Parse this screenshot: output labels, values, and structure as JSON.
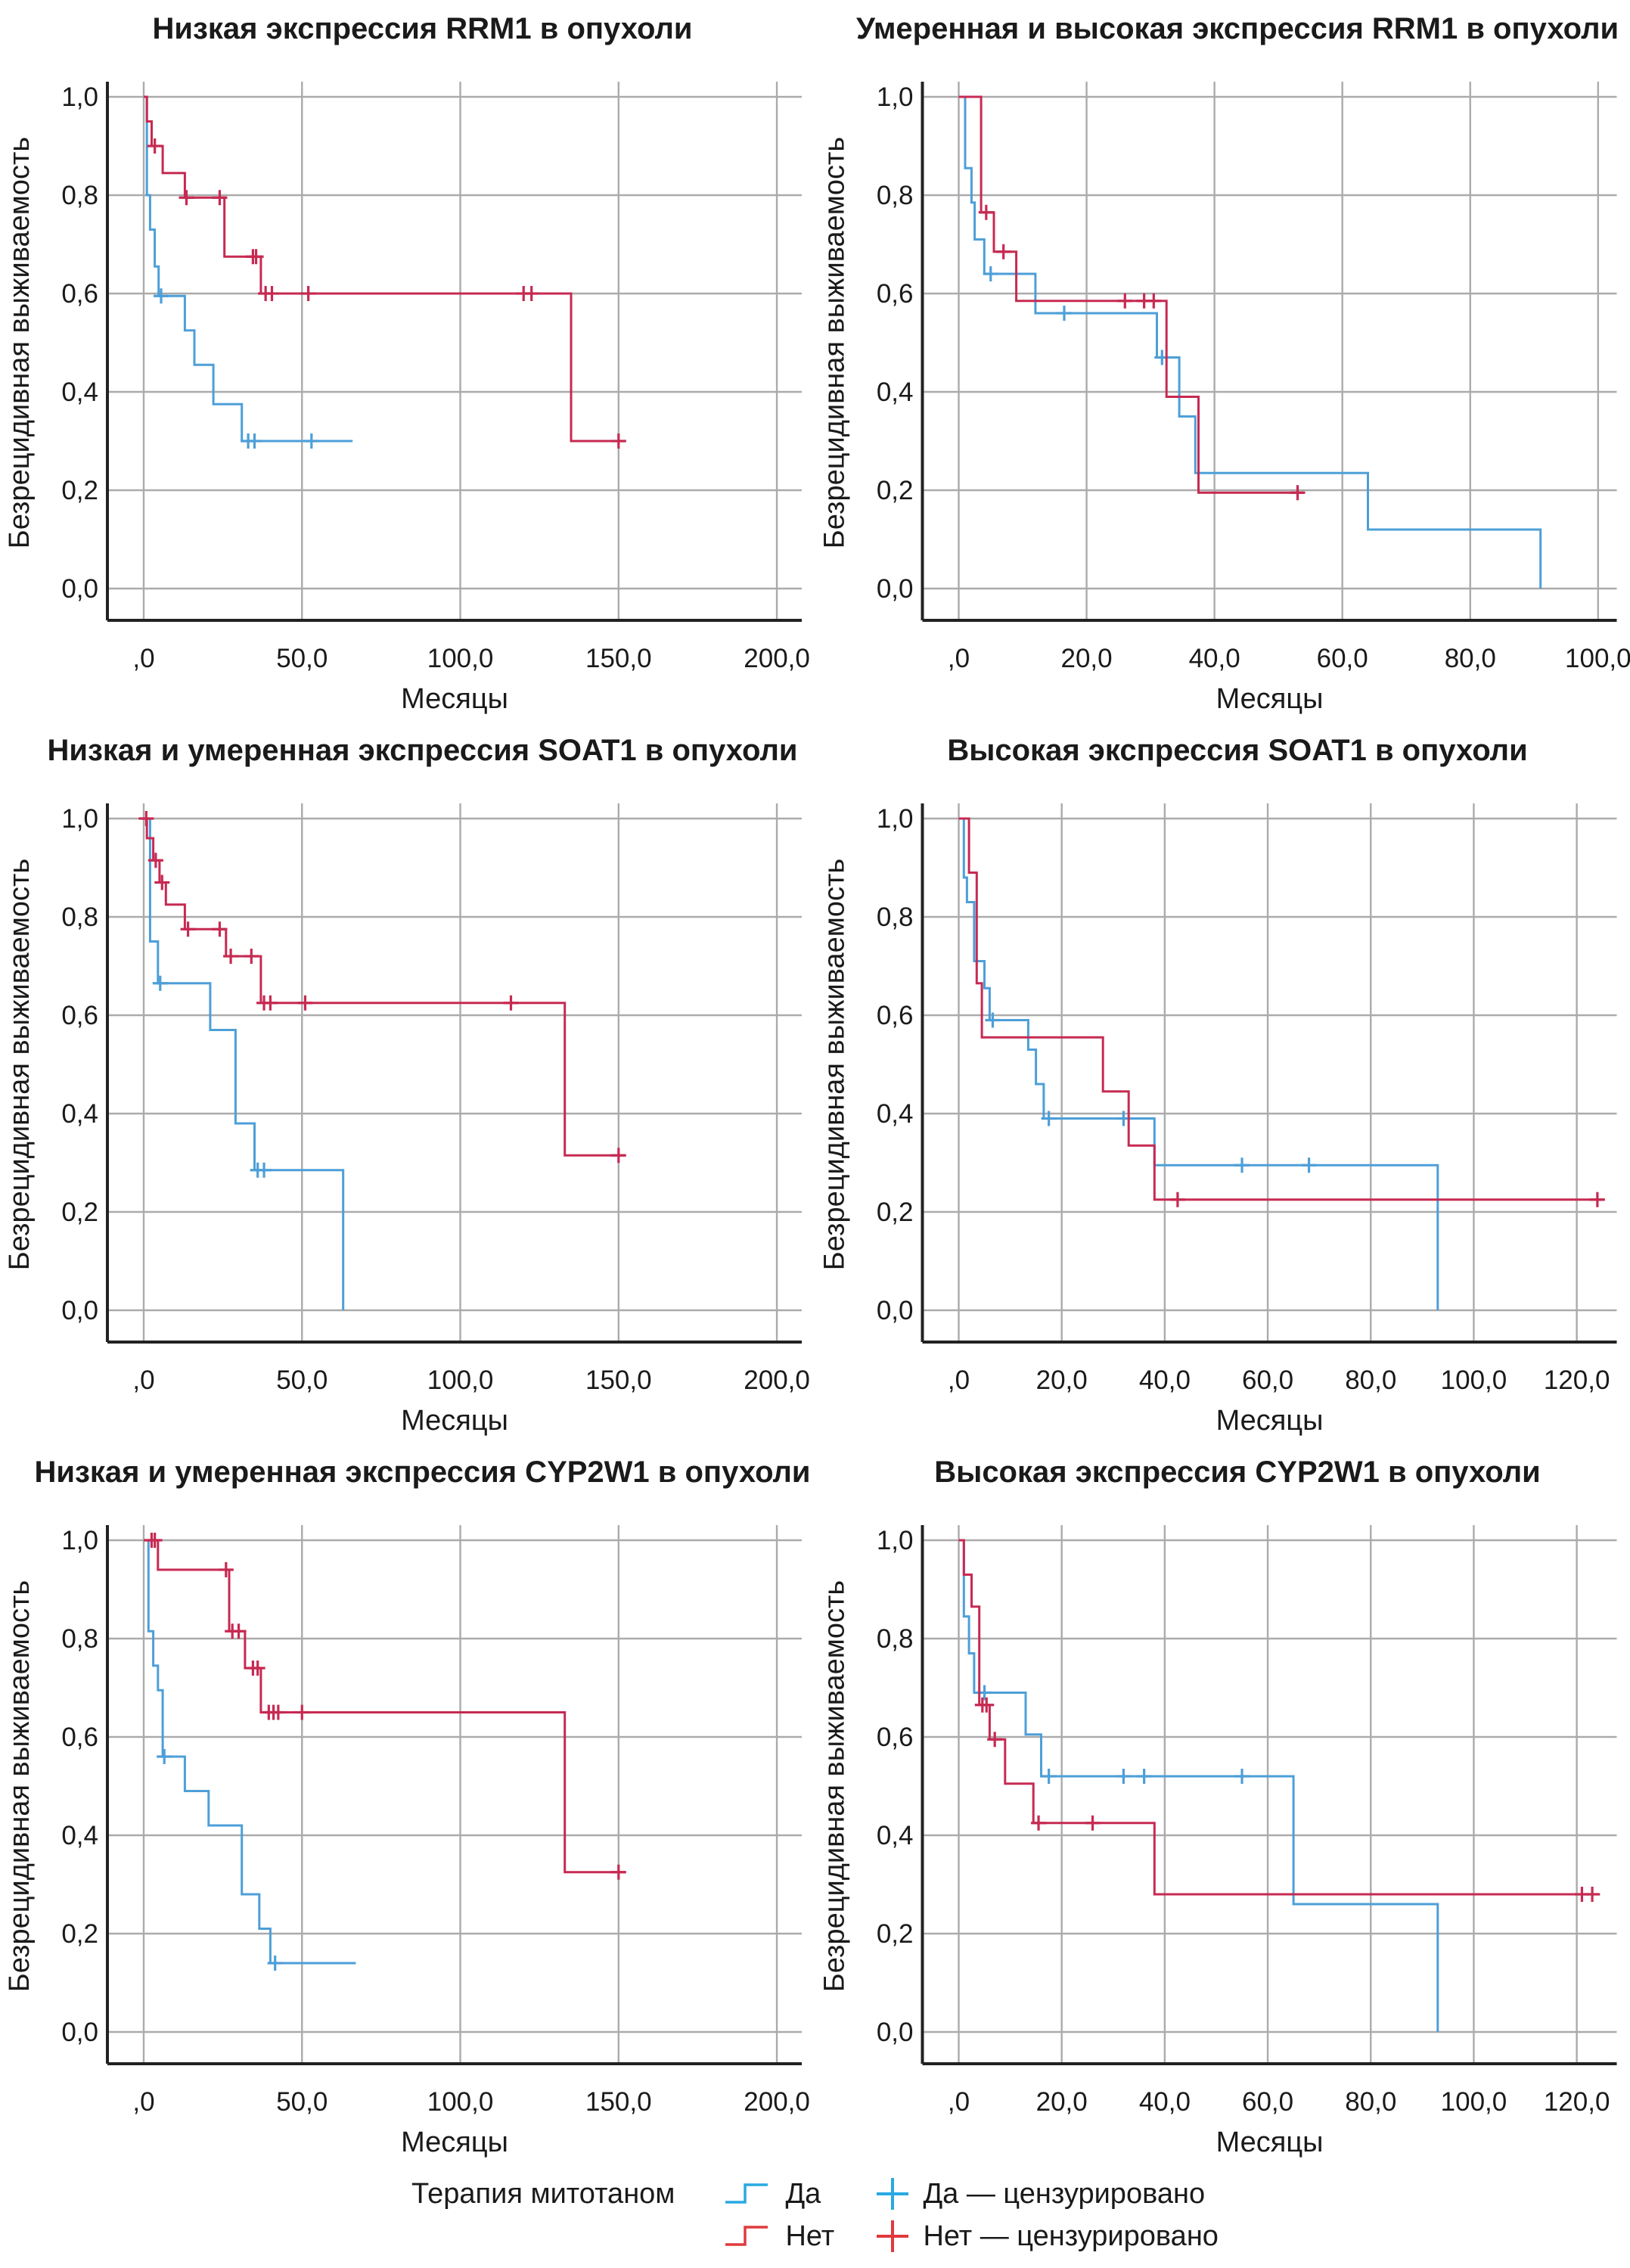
{
  "legend": {
    "title": "Терапия митотаном",
    "yes": "Да",
    "no": "Нет",
    "yes_censored": "Да — цензурировано",
    "no_censored": "Нет — цензурировано"
  },
  "colors": {
    "yes": "#4D9FD8",
    "no": "#C62A52",
    "legend_yes": "#29A9E1",
    "legend_no": "#E03A3E",
    "grid": "#ABABAB",
    "axis": "#222222",
    "text": "#1a1a1a"
  },
  "chart_data": [
    {
      "type": "km_step",
      "title": "Низкая экспрессия RRM1 в опухоли",
      "xlabel": "Месяцы",
      "ylabel": "Безрецидивная выживаемость",
      "xmax": 205,
      "xticks": {
        "values": [
          0,
          50,
          100,
          150,
          200
        ],
        "labels": [
          ",0",
          "50,0",
          "100,0",
          "150,0",
          "200,0"
        ]
      },
      "yticks": {
        "values": [
          0,
          0.2,
          0.4,
          0.6,
          0.8,
          1.0
        ],
        "labels": [
          "0,0",
          "0,2",
          "0,4",
          "0,6",
          "0,8",
          "1,0"
        ]
      },
      "series": [
        {
          "name": "Да",
          "color": "yes",
          "drops": [
            [
              1,
              0.8
            ],
            [
              2,
              0.73
            ],
            [
              3.5,
              0.655
            ],
            [
              4.7,
              0.595
            ],
            [
              13,
              0.525
            ],
            [
              16,
              0.455
            ],
            [
              22,
              0.375
            ],
            [
              31,
              0.3
            ]
          ],
          "censors": [
            [
              5.5,
              0.595
            ],
            [
              33,
              0.3
            ],
            [
              35,
              0.3
            ],
            [
              53,
              0.3
            ]
          ],
          "end": 66
        },
        {
          "name": "Нет",
          "color": "no",
          "drops": [
            [
              1,
              0.95
            ],
            [
              2.5,
              0.9
            ],
            [
              6,
              0.845
            ],
            [
              13,
              0.795
            ],
            [
              25.5,
              0.675
            ],
            [
              37,
              0.6
            ],
            [
              135,
              0.3
            ]
          ],
          "censors": [
            [
              3.5,
              0.9
            ],
            [
              13.5,
              0.795
            ],
            [
              24,
              0.795
            ],
            [
              34.5,
              0.675
            ],
            [
              35.5,
              0.675
            ],
            [
              38.5,
              0.6
            ],
            [
              40.5,
              0.6
            ],
            [
              52,
              0.6
            ],
            [
              120,
              0.6
            ],
            [
              122.5,
              0.6
            ],
            [
              150,
              0.3
            ]
          ],
          "end": 152
        }
      ]
    },
    {
      "type": "km_step",
      "title": "Умеренная и высокая экспрессия RRM1 в опухоли",
      "xlabel": "Месяцы",
      "ylabel": "Безрецидивная выживаемость",
      "xmax": 101.5,
      "xticks": {
        "values": [
          0,
          20,
          40,
          60,
          80,
          100
        ],
        "labels": [
          ",0",
          "20,0",
          "40,0",
          "60,0",
          "80,0",
          "100,0"
        ]
      },
      "yticks": {
        "values": [
          0,
          0.2,
          0.4,
          0.6,
          0.8,
          1.0
        ],
        "labels": [
          "0,0",
          "0,2",
          "0,4",
          "0,6",
          "0,8",
          "1,0"
        ]
      },
      "series": [
        {
          "name": "Да",
          "color": "yes",
          "drops": [
            [
              1,
              0.855
            ],
            [
              2,
              0.785
            ],
            [
              2.5,
              0.71
            ],
            [
              4,
              0.64
            ],
            [
              12,
              0.56
            ],
            [
              31,
              0.47
            ],
            [
              34.5,
              0.35
            ],
            [
              37,
              0.235
            ],
            [
              64,
              0.12
            ],
            [
              91,
              0.0
            ]
          ],
          "censors": [
            [
              5,
              0.64
            ],
            [
              16.5,
              0.56
            ],
            [
              31.8,
              0.47
            ]
          ],
          "end": 91
        },
        {
          "name": "Нет",
          "color": "no",
          "drops": [
            [
              3.5,
              0.765
            ],
            [
              5.5,
              0.685
            ],
            [
              9,
              0.585
            ],
            [
              32.5,
              0.39
            ],
            [
              37.5,
              0.195
            ]
          ],
          "censors": [
            [
              4.3,
              0.765
            ],
            [
              7,
              0.685
            ],
            [
              26,
              0.585
            ],
            [
              29,
              0.585
            ],
            [
              30.5,
              0.585
            ],
            [
              53,
              0.195
            ]
          ],
          "end": 54
        }
      ]
    },
    {
      "type": "km_step",
      "title": "Низкая и умеренная экспрессия SOAT1 в опухоли",
      "xlabel": "Месяцы",
      "ylabel": "Безрецидивная выживаемость",
      "xmax": 205,
      "xticks": {
        "values": [
          0,
          50,
          100,
          150,
          200
        ],
        "labels": [
          ",0",
          "50,0",
          "100,0",
          "150,0",
          "200,0"
        ]
      },
      "yticks": {
        "values": [
          0,
          0.2,
          0.4,
          0.6,
          0.8,
          1.0
        ],
        "labels": [
          "0,0",
          "0,2",
          "0,4",
          "0,6",
          "0,8",
          "1,0"
        ]
      },
      "series": [
        {
          "name": "Да",
          "color": "yes",
          "drops": [
            [
              2,
              0.75
            ],
            [
              4.5,
              0.665
            ],
            [
              21,
              0.57
            ],
            [
              29,
              0.38
            ],
            [
              35,
              0.285
            ],
            [
              63,
              0.0
            ]
          ],
          "censors": [
            [
              5.2,
              0.665
            ],
            [
              36,
              0.285
            ],
            [
              38,
              0.285
            ]
          ],
          "end": 63
        },
        {
          "name": "Нет",
          "color": "no",
          "drops": [
            [
              1,
              0.96
            ],
            [
              3,
              0.915
            ],
            [
              5,
              0.87
            ],
            [
              7,
              0.825
            ],
            [
              13,
              0.775
            ],
            [
              26,
              0.72
            ],
            [
              37,
              0.625
            ],
            [
              133,
              0.315
            ]
          ],
          "censors": [
            [
              0.8,
              1.0
            ],
            [
              3.8,
              0.915
            ],
            [
              5.8,
              0.87
            ],
            [
              14,
              0.775
            ],
            [
              24,
              0.775
            ],
            [
              27.5,
              0.72
            ],
            [
              34,
              0.72
            ],
            [
              38,
              0.625
            ],
            [
              40,
              0.625
            ],
            [
              51,
              0.625
            ],
            [
              116,
              0.625
            ],
            [
              150,
              0.315
            ]
          ],
          "end": 152
        }
      ]
    },
    {
      "type": "km_step",
      "title": "Высокая экспрессия SOAT1 в опухоли",
      "xlabel": "Месяцы",
      "ylabel": "Безрецидивная выживаемость",
      "xmax": 126,
      "xticks": {
        "values": [
          0,
          20,
          40,
          60,
          80,
          100,
          120
        ],
        "labels": [
          ",0",
          "20,0",
          "40,0",
          "60,0",
          "80,0",
          "100,0",
          "120,0"
        ]
      },
      "yticks": {
        "values": [
          0,
          0.2,
          0.4,
          0.6,
          0.8,
          1.0
        ],
        "labels": [
          "0,0",
          "0,2",
          "0,4",
          "0,6",
          "0,8",
          "1,0"
        ]
      },
      "series": [
        {
          "name": "Да",
          "color": "yes",
          "drops": [
            [
              1,
              0.88
            ],
            [
              1.6,
              0.83
            ],
            [
              3,
              0.71
            ],
            [
              5,
              0.655
            ],
            [
              6,
              0.59
            ],
            [
              13.5,
              0.53
            ],
            [
              15,
              0.46
            ],
            [
              16.5,
              0.39
            ],
            [
              38,
              0.295
            ],
            [
              93,
              0.0
            ]
          ],
          "censors": [
            [
              6.6,
              0.59
            ],
            [
              17.5,
              0.39
            ],
            [
              32,
              0.39
            ],
            [
              55,
              0.295
            ],
            [
              68,
              0.295
            ]
          ],
          "end": 93
        },
        {
          "name": "Нет",
          "color": "no",
          "drops": [
            [
              2,
              0.89
            ],
            [
              3.5,
              0.665
            ],
            [
              4.5,
              0.555
            ],
            [
              28,
              0.445
            ],
            [
              33,
              0.335
            ],
            [
              38,
              0.225
            ]
          ],
          "censors": [
            [
              42.5,
              0.225
            ],
            [
              124,
              0.225
            ]
          ],
          "end": 125
        }
      ]
    },
    {
      "type": "km_step",
      "title": "Низкая и умеренная экспрессия CYP2W1 в опухоли",
      "xlabel": "Месяцы",
      "ylabel": "Безрецидивная выживаемость",
      "xmax": 205,
      "xticks": {
        "values": [
          0,
          50,
          100,
          150,
          200
        ],
        "labels": [
          ",0",
          "50,0",
          "100,0",
          "150,0",
          "200,0"
        ]
      },
      "yticks": {
        "values": [
          0,
          0.2,
          0.4,
          0.6,
          0.8,
          1.0
        ],
        "labels": [
          "0,0",
          "0,2",
          "0,4",
          "0,6",
          "0,8",
          "1,0"
        ]
      },
      "series": [
        {
          "name": "Да",
          "color": "yes",
          "drops": [
            [
              1.5,
              0.815
            ],
            [
              3,
              0.745
            ],
            [
              4.5,
              0.695
            ],
            [
              6,
              0.56
            ],
            [
              13,
              0.49
            ],
            [
              20.5,
              0.42
            ],
            [
              31,
              0.28
            ],
            [
              36.5,
              0.21
            ],
            [
              40,
              0.14
            ]
          ],
          "censors": [
            [
              6.5,
              0.56
            ],
            [
              41.5,
              0.14
            ]
          ],
          "end": 67
        },
        {
          "name": "Нет",
          "color": "no",
          "drops": [
            [
              4.5,
              0.94
            ],
            [
              27,
              0.815
            ],
            [
              32,
              0.74
            ],
            [
              37,
              0.65
            ],
            [
              133,
              0.325
            ]
          ],
          "censors": [
            [
              2.5,
              1.0
            ],
            [
              3.5,
              1.0
            ],
            [
              26,
              0.94
            ],
            [
              28,
              0.815
            ],
            [
              30,
              0.815
            ],
            [
              34.5,
              0.74
            ],
            [
              36,
              0.74
            ],
            [
              39.5,
              0.65
            ],
            [
              41,
              0.65
            ],
            [
              42.5,
              0.65
            ],
            [
              50,
              0.65
            ],
            [
              150,
              0.325
            ]
          ],
          "end": 152
        }
      ]
    },
    {
      "type": "km_step",
      "title": "Высокая экспрессия CYP2W1 в опухоли",
      "xlabel": "Месяцы",
      "ylabel": "Безрецидивная выживаемость",
      "xmax": 126,
      "xticks": {
        "values": [
          0,
          20,
          40,
          60,
          80,
          100,
          120
        ],
        "labels": [
          ",0",
          "20,0",
          "40,0",
          "60,0",
          "80,0",
          "100,0",
          "120,0"
        ]
      },
      "yticks": {
        "values": [
          0,
          0.2,
          0.4,
          0.6,
          0.8,
          1.0
        ],
        "labels": [
          "0,0",
          "0,2",
          "0,4",
          "0,6",
          "0,8",
          "1,0"
        ]
      },
      "series": [
        {
          "name": "Да",
          "color": "yes",
          "drops": [
            [
              1,
              0.845
            ],
            [
              2,
              0.77
            ],
            [
              3,
              0.69
            ],
            [
              13,
              0.605
            ],
            [
              16,
              0.52
            ],
            [
              65,
              0.26
            ],
            [
              93,
              0.0
            ]
          ],
          "censors": [
            [
              5,
              0.69
            ],
            [
              17.5,
              0.52
            ],
            [
              32,
              0.52
            ],
            [
              36,
              0.52
            ],
            [
              55,
              0.52
            ]
          ],
          "end": 93
        },
        {
          "name": "Нет",
          "color": "no",
          "drops": [
            [
              1,
              0.93
            ],
            [
              2.5,
              0.865
            ],
            [
              4,
              0.665
            ],
            [
              6,
              0.595
            ],
            [
              9,
              0.505
            ],
            [
              14.5,
              0.425
            ],
            [
              38,
              0.28
            ]
          ],
          "censors": [
            [
              4.6,
              0.665
            ],
            [
              5.4,
              0.665
            ],
            [
              7,
              0.595
            ],
            [
              15.5,
              0.425
            ],
            [
              26,
              0.425
            ],
            [
              121,
              0.28
            ],
            [
              123,
              0.28
            ]
          ],
          "end": 124.5
        }
      ]
    }
  ]
}
